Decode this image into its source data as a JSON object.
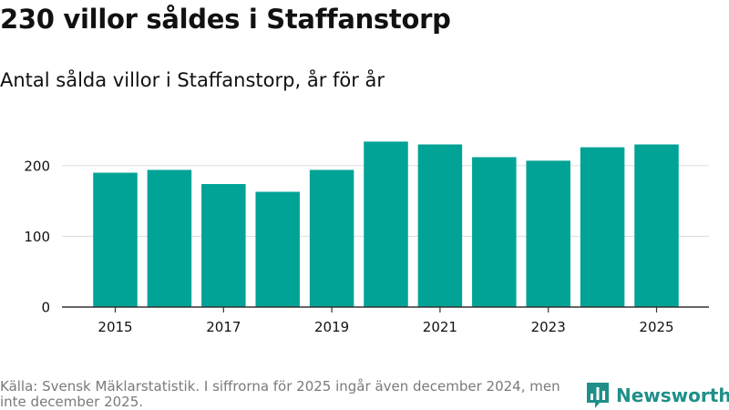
{
  "title": "230 villor såldes i Staffanstorp",
  "subtitle": "Antal sålda villor i Staffanstorp, år för år",
  "source": "Källa: Svensk Mäklarstatistik. I siffrorna för 2025 ingår även december 2024, men inte december 2025.",
  "brand": {
    "name": "Newsworthy",
    "icon": "bar-chart-logo-icon"
  },
  "colors": {
    "bar": "#00a396",
    "grid": "#dddddd",
    "axis": "#333333",
    "text": "#111111",
    "brand": "#1f8f89"
  },
  "chart_data": {
    "type": "bar",
    "title": "230 villor såldes i Staffanstorp",
    "subtitle": "Antal sålda villor i Staffanstorp, år för år",
    "categories": [
      "2015",
      "2016",
      "2017",
      "2018",
      "2019",
      "2020",
      "2021",
      "2022",
      "2023",
      "2024",
      "2025"
    ],
    "values": [
      190,
      194,
      174,
      163,
      194,
      234,
      230,
      212,
      207,
      226,
      230
    ],
    "ylim": [
      0,
      250
    ],
    "yticks": [
      0,
      100,
      200
    ],
    "xticks": [
      "2015",
      "2017",
      "2019",
      "2021",
      "2023",
      "2025"
    ],
    "xlabel": "",
    "ylabel": "",
    "grid": true,
    "legend": "none"
  }
}
